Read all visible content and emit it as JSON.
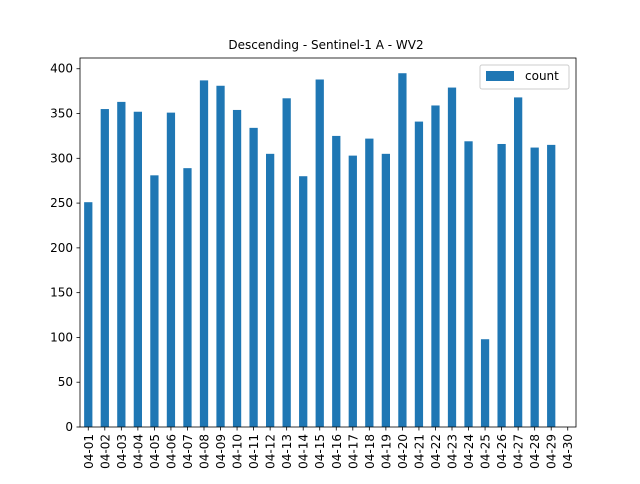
{
  "chart_data": {
    "type": "bar",
    "title": "Descending - Sentinel-1 A - WV2",
    "xlabel": "",
    "ylabel": "",
    "categories": [
      "04-01",
      "04-02",
      "04-03",
      "04-04",
      "04-05",
      "04-06",
      "04-07",
      "04-08",
      "04-09",
      "04-10",
      "04-11",
      "04-12",
      "04-13",
      "04-14",
      "04-15",
      "04-16",
      "04-17",
      "04-18",
      "04-19",
      "04-20",
      "04-21",
      "04-22",
      "04-23",
      "04-24",
      "04-25",
      "04-26",
      "04-27",
      "04-28",
      "04-29",
      "04-30"
    ],
    "series": [
      {
        "name": "count",
        "color": "#1f77b4",
        "values": [
          251,
          355,
          363,
          352,
          281,
          351,
          289,
          387,
          381,
          354,
          334,
          305,
          367,
          280,
          388,
          325,
          303,
          322,
          305,
          395,
          341,
          359,
          379,
          319,
          98,
          316,
          368,
          312,
          315,
          0
        ]
      }
    ],
    "ylim": [
      0,
      412
    ],
    "yticks": [
      0,
      50,
      100,
      150,
      200,
      250,
      300,
      350,
      400
    ],
    "legend_position": "top-right",
    "grid": false
  }
}
